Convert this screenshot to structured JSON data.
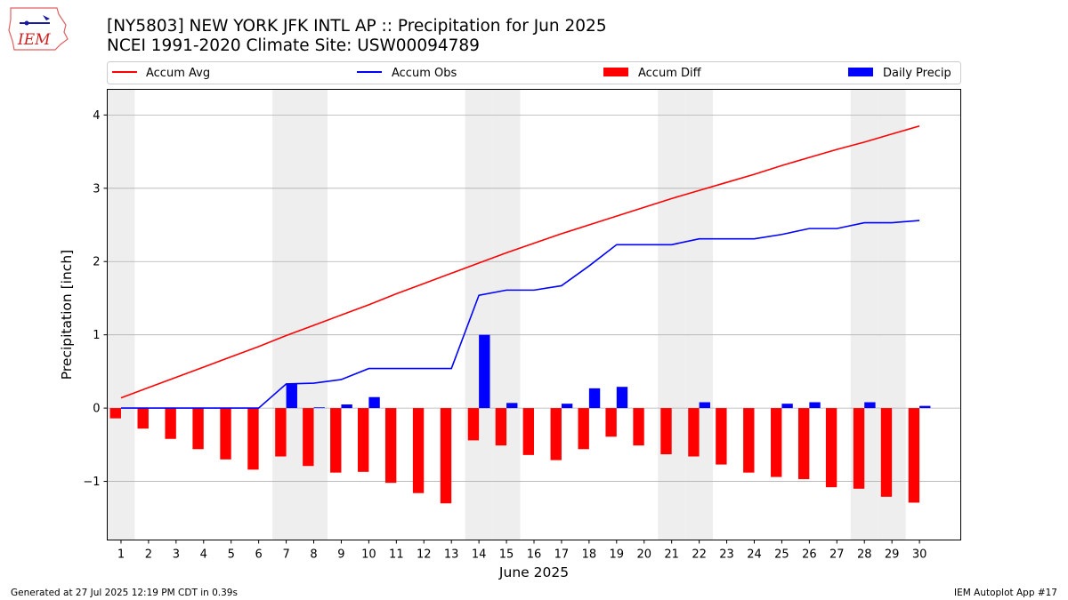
{
  "page": {
    "footer_left": "Generated at 27 Jul 2025 12:19 PM CDT in 0.39s",
    "footer_right": "IEM Autoplot App #17",
    "logo_text": "IEM"
  },
  "chart_data": {
    "type": "bar",
    "title": "[NY5803] NEW YORK JFK INTL AP :: Precipitation for Jun 2025",
    "subtitle": "NCEI 1991-2020 Climate Site: USW00094789",
    "xlabel": "June 2025",
    "ylabel": "Precipitation [inch]",
    "xlim": [
      0.5,
      31.5
    ],
    "ylim": [
      -1.8,
      4.35
    ],
    "yticks": [
      -1,
      0,
      1,
      2,
      3,
      4
    ],
    "yticklabels": [
      "−1",
      "0",
      "1",
      "2",
      "3",
      "4"
    ],
    "grid": "horizontal",
    "legend": {
      "placement": "top",
      "entries": [
        "Accum Avg",
        "Accum Obs",
        "Accum Diff",
        "Daily Precip"
      ]
    },
    "shaded_days": [
      1,
      7,
      8,
      14,
      15,
      21,
      22,
      28,
      29
    ],
    "x": [
      1,
      2,
      3,
      4,
      5,
      6,
      7,
      8,
      9,
      10,
      11,
      12,
      13,
      14,
      15,
      16,
      17,
      18,
      19,
      20,
      21,
      22,
      23,
      24,
      25,
      26,
      27,
      28,
      29,
      30
    ],
    "colors": {
      "accum_avg": "#ff0000",
      "accum_obs": "#0000ff",
      "accum_diff": "#ff0000",
      "daily_precip": "#0000ff",
      "weekend_shade": "#eeeeee",
      "grid": "#b0b0b0"
    },
    "series": [
      {
        "name": "Accum Avg",
        "kind": "line",
        "values": [
          0.14,
          0.28,
          0.42,
          0.56,
          0.7,
          0.84,
          0.99,
          1.13,
          1.27,
          1.41,
          1.56,
          1.7,
          1.84,
          1.98,
          2.12,
          2.25,
          2.38,
          2.5,
          2.62,
          2.74,
          2.86,
          2.97,
          3.08,
          3.19,
          3.31,
          3.42,
          3.53,
          3.63,
          3.74,
          3.85
        ]
      },
      {
        "name": "Accum Obs",
        "kind": "line",
        "values": [
          0,
          0,
          0,
          0,
          0,
          0,
          0.33,
          0.34,
          0.39,
          0.54,
          0.54,
          0.54,
          0.54,
          1.54,
          1.61,
          1.61,
          1.67,
          1.94,
          2.23,
          2.23,
          2.23,
          2.31,
          2.31,
          2.31,
          2.37,
          2.45,
          2.45,
          2.53,
          2.53,
          2.56
        ]
      },
      {
        "name": "Accum Diff",
        "kind": "bar",
        "values": [
          -0.14,
          -0.28,
          -0.42,
          -0.56,
          -0.7,
          -0.84,
          -0.66,
          -0.79,
          -0.88,
          -0.87,
          -1.02,
          -1.16,
          -1.3,
          -0.44,
          -0.51,
          -0.64,
          -0.71,
          -0.56,
          -0.39,
          -0.51,
          -0.63,
          -0.66,
          -0.77,
          -0.88,
          -0.94,
          -0.97,
          -1.08,
          -1.1,
          -1.21,
          -1.29
        ]
      },
      {
        "name": "Daily Precip",
        "kind": "bar",
        "values": [
          0,
          0,
          0,
          0,
          0,
          0,
          0.33,
          0.01,
          0.05,
          0.15,
          0,
          0,
          0,
          1.0,
          0.07,
          0,
          0.06,
          0.27,
          0.29,
          0,
          0,
          0.08,
          0,
          0,
          0.06,
          0.08,
          0,
          0.08,
          0,
          0.03
        ]
      }
    ]
  }
}
